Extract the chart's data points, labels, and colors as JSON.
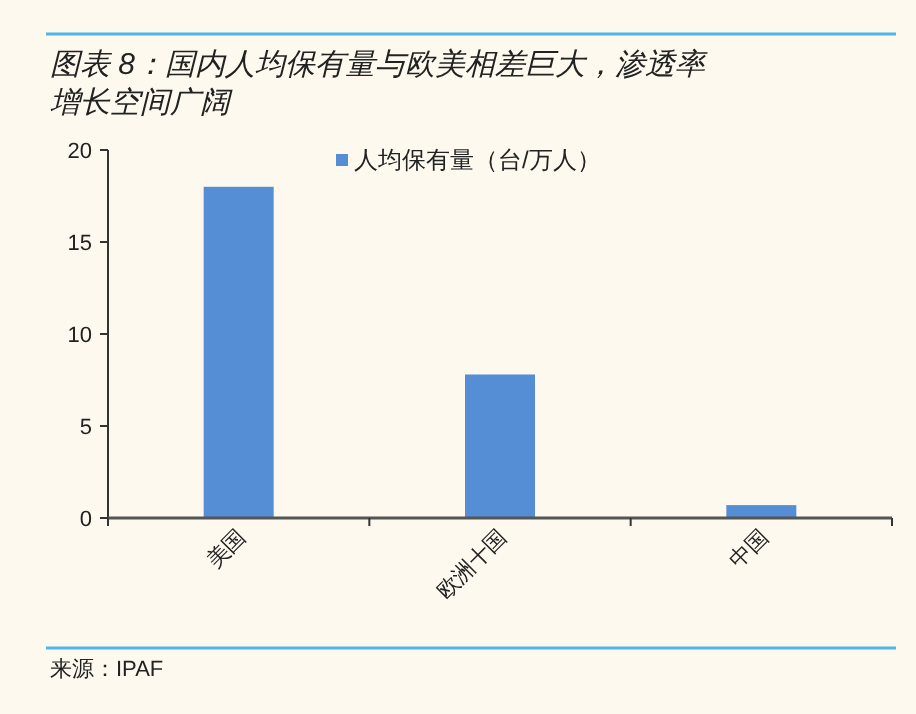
{
  "chart_data": {
    "type": "bar",
    "title": "图表 8：国内人均保有量与欧美相差巨大，渗透率增长空间广阔",
    "categories": [
      "美国",
      "欧洲十国",
      "中国"
    ],
    "series": [
      {
        "name": "人均保有量（台/万人）",
        "color": "#558ed5",
        "values": [
          18,
          7.8,
          0.7
        ]
      }
    ],
    "ylim": [
      0,
      20
    ],
    "yticks": [
      0,
      5,
      10,
      15,
      20
    ],
    "grid": false,
    "legend": "top",
    "annotations": [
      "来源：IPAF"
    ]
  }
}
